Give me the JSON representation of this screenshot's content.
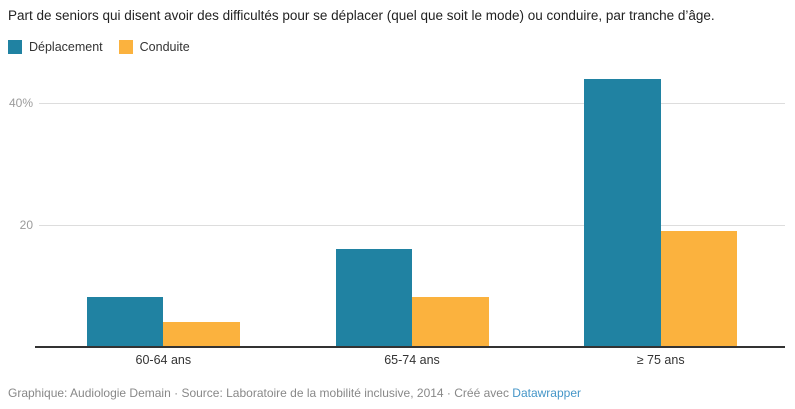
{
  "chart_data": {
    "type": "bar",
    "title": "Part de seniors qui disent avoir des difficultés pour se déplacer (quel que soit le mode) ou conduire, par tranche d’âge.",
    "categories": [
      "60-64 ans",
      "65-74 ans",
      "≥ 75 ans"
    ],
    "series": [
      {
        "name": "Déplacement",
        "color": "#2082a2",
        "values": [
          8,
          16,
          44
        ]
      },
      {
        "name": "Conduite",
        "color": "#fbb23e",
        "values": [
          4,
          8,
          19
        ]
      }
    ],
    "unit": "%",
    "y_ticks": [
      {
        "value": 20,
        "label": "20"
      },
      {
        "value": 40,
        "label": "40%"
      }
    ],
    "ylim": [
      0,
      45
    ],
    "grid": true,
    "legend_position": "top-left"
  },
  "footer": {
    "text": "Graphique: Audiologie Demain · Source: Laboratoire de la mobilité inclusive, 2014 · Créé avec ",
    "link_label": "Datawrapper"
  },
  "colors": {
    "deplacement": "#2082a2",
    "conduite": "#fbb23e",
    "grid": "#dddddd",
    "axis": "#333333",
    "tick_label": "#9b9b9b",
    "x_label": "#333333",
    "title": "#222222",
    "footer_text": "#888888",
    "link": "#4596c8"
  }
}
